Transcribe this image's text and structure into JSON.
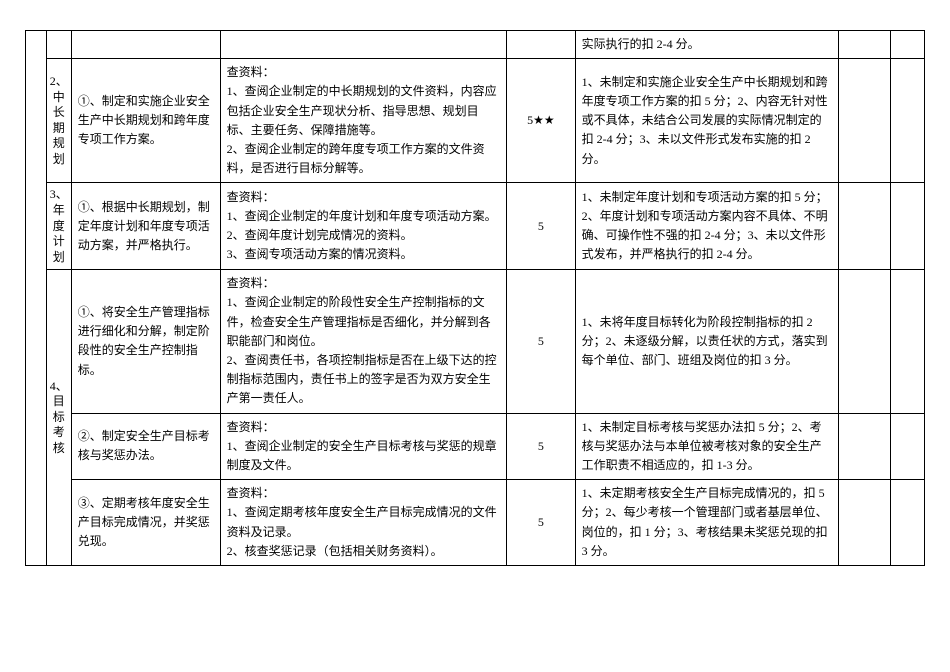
{
  "rows": [
    {
      "col5": "实际执行的扣 2-4 分。"
    },
    {
      "num": "2、中长期规划",
      "col2": "①、制定和实施企业安全生产中长期规划和跨年度专项工作方案。",
      "col3": "查资料：\n1、查阅企业制定的中长期规划的文件资料，内容应包括企业安全生产现状分析、指导思想、规划目标、主要任务、保障措施等。\n2、查阅企业制定的跨年度专项工作方案的文件资料，是否进行目标分解等。",
      "col4": "5★★",
      "col5": "1、未制定和实施企业安全生产中长期规划和跨年度专项工作方案的扣 5 分；2、内容无针对性或不具体，未结合公司发展的实际情况制定的扣 2-4 分；3、未以文件形式发布实施的扣 2 分。"
    },
    {
      "num": "3、年度计划",
      "col2": "①、根据中长期规划，制定年度计划和年度专项活动方案，并严格执行。",
      "col3": "查资料：\n1、查阅企业制定的年度计划和年度专项活动方案。\n2、查阅年度计划完成情况的资料。\n3、查阅专项活动方案的情况资料。",
      "col4": "5",
      "col5": "1、未制定年度计划和专项活动方案的扣 5 分；2、年度计划和专项活动方案内容不具体、不明确、可操作性不强的扣 2-4 分；3、未以文件形式发布，并严格执行的扣 2-4 分。"
    },
    {
      "num": "4、目标考核",
      "col2": "①、将安全生产管理指标进行细化和分解，制定阶段性的安全生产控制指标。",
      "col3": "查资料：\n1、查阅企业制定的阶段性安全生产控制指标的文件，检查安全生产管理指标是否细化，并分解到各职能部门和岗位。\n2、查阅责任书，各项控制指标是否在上级下达的控制指标范围内，责任书上的签字是否为双方安全生产第一责任人。",
      "col4": "5",
      "col5": "1、未将年度目标转化为阶段控制指标的扣 2 分；2、未逐级分解，以责任状的方式，落实到每个单位、部门、班组及岗位的扣 3 分。"
    },
    {
      "col2": "②、制定安全生产目标考核与奖惩办法。",
      "col3": "查资料：\n1、查阅企业制定的安全生产目标考核与奖惩的规章制度及文件。",
      "col4": "5",
      "col5": "1、未制定目标考核与奖惩办法扣 5 分；2、考核与奖惩办法与本单位被考核对象的安全生产工作职责不相适应的，扣 1-3 分。"
    },
    {
      "col2": "③、定期考核年度安全生产目标完成情况，并奖惩兑现。",
      "col3": "查资料：\n1、查阅定期考核年度安全生产目标完成情况的文件资料及记录。\n2、核查奖惩记录（包括相关财务资料）。",
      "col4": "5",
      "col5": "1、未定期考核安全生产目标完成情况的，扣 5 分；2、每少考核一个管理部门或者基层单位、岗位的，扣 1 分；3、考核结果未奖惩兑现的扣 3 分。"
    }
  ]
}
